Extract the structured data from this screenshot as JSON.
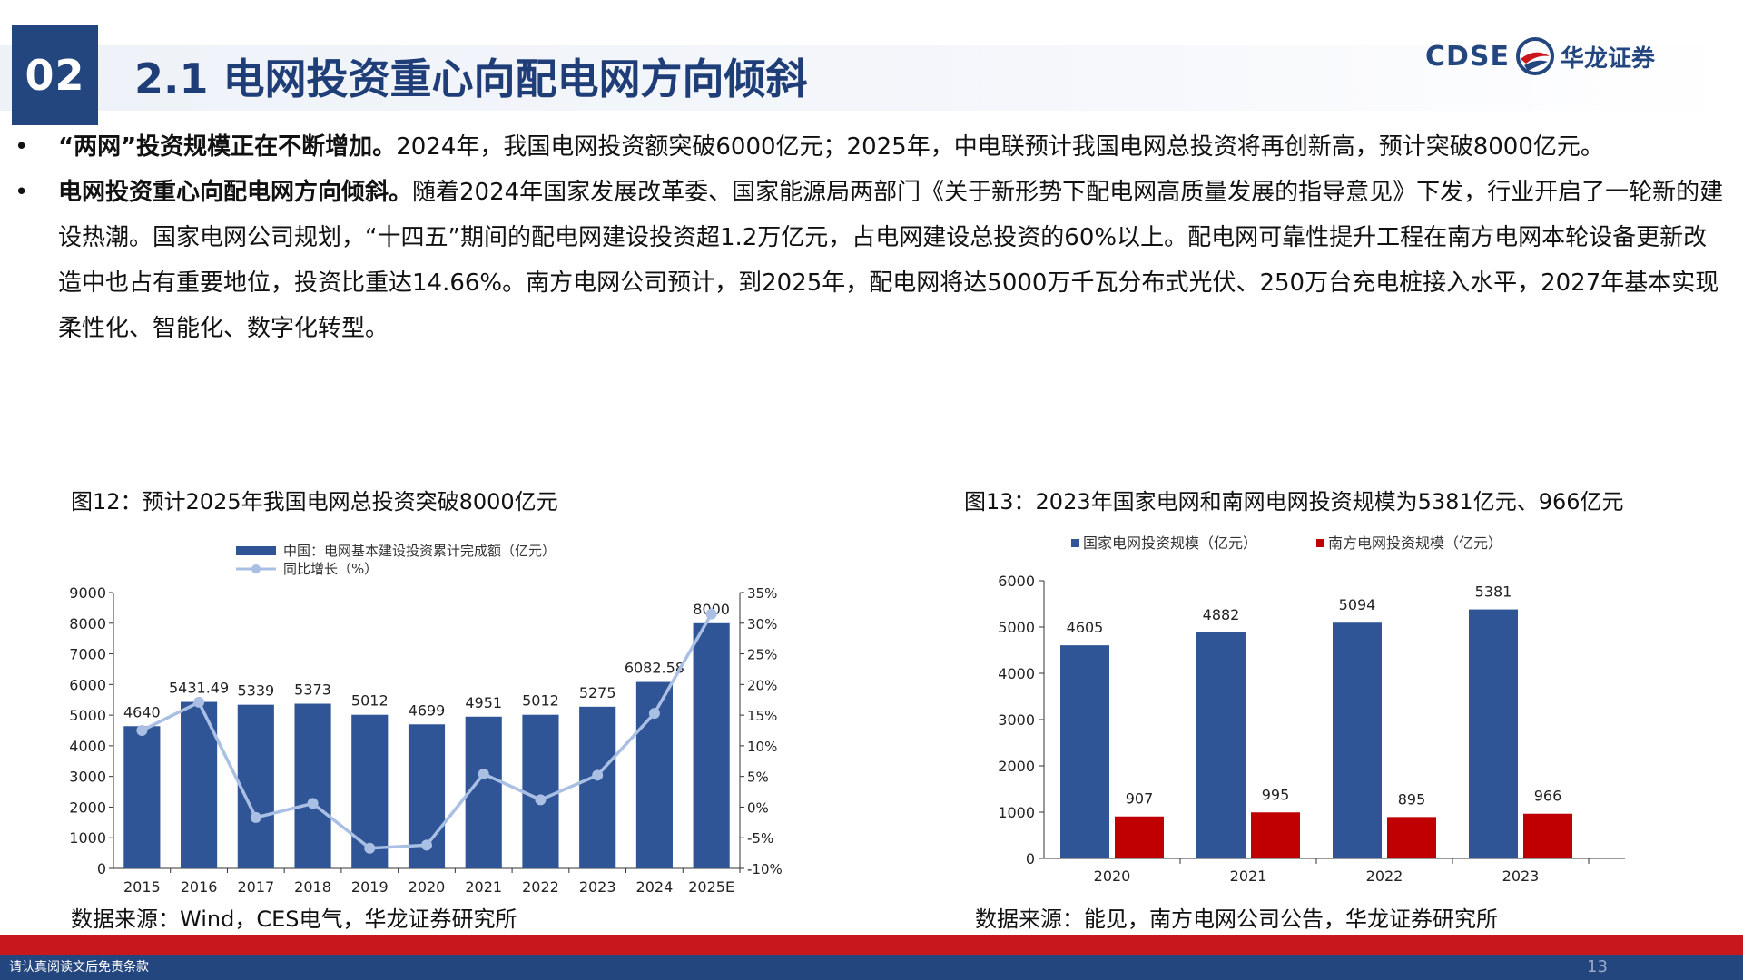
{
  "header": {
    "section_number": "02",
    "title": "2.1 电网投资重心向配电网方向倾斜",
    "brand_latin": "CDSE",
    "brand_cn": "华龙证券",
    "colors": {
      "primary": "#23467f",
      "accent": "#c8171d"
    }
  },
  "bullets": [
    {
      "bold": "“两网”投资规模正在不断增加。",
      "text": "2024年，我国电网投资额突破6000亿元；2025年，中电联预计我国电网总投资将再创新高，预计突破8000亿元。"
    },
    {
      "bold": "电网投资重心向配电网方向倾斜。",
      "text": "随着2024年国家发展改革委、国家能源局两部门《关于新形势下配电网高质量发展的指导意见》下发，行业开启了一轮新的建设热潮。国家电网公司规划，“十四五”期间的配电网建设投资超1.2万亿元，占电网建设总投资的60%以上。配电网可靠性提升工程在南方电网本轮设备更新改造中也占有重要地位，投资比重达14.66%。南方电网公司预计，到2025年，配电网将达5000万千瓦分布式光伏、250万台充电桩接入水平，2027年基本实现柔性化、智能化、数字化转型。"
    }
  ],
  "figure12": {
    "caption": "图12：预计2025年我国电网总投资突破8000亿元",
    "source": "数据来源：Wind，CES电气，华龙证券研究所"
  },
  "figure13": {
    "caption": "图13：2023年国家电网和南网电网投资规模为5381亿元、966亿元",
    "source": "数据来源：能见，南方电网公司公告，华龙证券研究所"
  },
  "chart_data": [
    {
      "type": "bar",
      "categories": [
        "2015",
        "2016",
        "2017",
        "2018",
        "2019",
        "2020",
        "2021",
        "2022",
        "2023",
        "2024",
        "2025E"
      ],
      "series": [
        {
          "name": "中国：电网基本建设投资累计完成额（亿元）",
          "type": "bar",
          "axis": "left",
          "color": "#2f5597",
          "values": [
            4640,
            5431.49,
            5339,
            5373,
            5012,
            4699,
            4951,
            5012,
            5275,
            6082.58,
            8000
          ],
          "labels": [
            "4640",
            "5431.49",
            "5339",
            "5373",
            "5012",
            "4699",
            "4951",
            "5012",
            "5275",
            "6082.58",
            "8000"
          ]
        },
        {
          "name": "同比增长（%）",
          "type": "line",
          "axis": "right",
          "color": "#a9bfe3",
          "values": [
            12.5,
            17.1,
            -1.7,
            0.6,
            -6.7,
            -6.2,
            5.4,
            1.2,
            5.2,
            15.3,
            31.5
          ]
        }
      ],
      "y_left": {
        "min": 0,
        "max": 9000,
        "ticks": [
          "0",
          "1000",
          "2000",
          "3000",
          "4000",
          "5000",
          "6000",
          "7000",
          "8000",
          "9000"
        ]
      },
      "y_right": {
        "min": -10,
        "max": 35,
        "ticks": [
          "-10%",
          "-5%",
          "0%",
          "5%",
          "10%",
          "15%",
          "20%",
          "25%",
          "30%",
          "35%"
        ]
      },
      "legend_position": "top-left",
      "grid": false
    },
    {
      "type": "bar",
      "categories": [
        "2020",
        "2021",
        "2022",
        "2023"
      ],
      "series": [
        {
          "name": "国家电网投资规模（亿元）",
          "color": "#2f5597",
          "values": [
            4605,
            4882,
            5094,
            5381
          ]
        },
        {
          "name": "南方电网投资规模（亿元）",
          "color": "#c00000",
          "values": [
            907,
            995,
            895,
            966
          ]
        }
      ],
      "y": {
        "min": 0,
        "max": 6000,
        "ticks": [
          "0",
          "1000",
          "2000",
          "3000",
          "4000",
          "5000",
          "6000"
        ]
      },
      "legend_position": "top",
      "grid": false
    }
  ],
  "footer": {
    "disclaimer": "请认真阅读文后免责条款",
    "page_number": "13"
  }
}
